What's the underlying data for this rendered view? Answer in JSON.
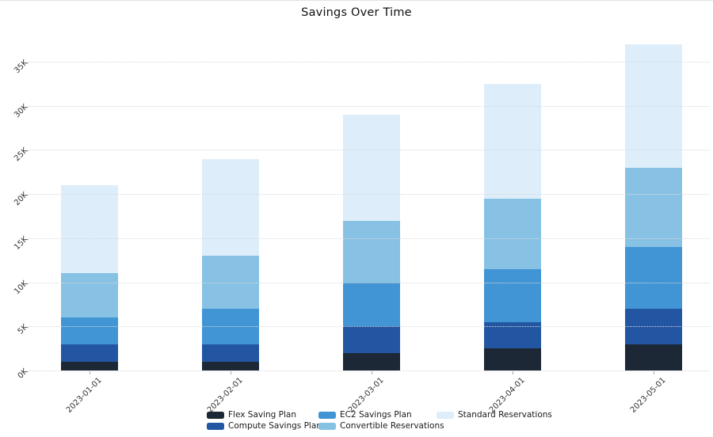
{
  "chart_data": {
    "type": "bar",
    "stacked": true,
    "title": "Savings Over Time",
    "categories": [
      "2023-01-01",
      "2023-02-01",
      "2023-03-01",
      "2023-04-01",
      "2023-05-01"
    ],
    "series": [
      {
        "name": "Flex Saving Plan",
        "color": "#1c2836",
        "values": [
          1000,
          1000,
          2000,
          2500,
          3000
        ]
      },
      {
        "name": "Compute Savings Plan",
        "color": "#2356a2",
        "values": [
          2000,
          2000,
          3000,
          3000,
          4000
        ]
      },
      {
        "name": "EC2 Savings Plan",
        "color": "#4195d5",
        "values": [
          3000,
          4000,
          5000,
          6000,
          7000
        ]
      },
      {
        "name": "Convertible Reservations",
        "color": "#87c2e4",
        "values": [
          5000,
          6000,
          7000,
          8000,
          9000
        ]
      },
      {
        "name": "Standard Reservations",
        "color": "#ddeefa",
        "values": [
          10000,
          11000,
          12000,
          13000,
          14000
        ]
      }
    ],
    "totals": [
      21000,
      24000,
      29000,
      32500,
      37000
    ],
    "xlabel": "",
    "ylabel": "",
    "y_ticks": [
      "0K",
      "5K",
      "10K",
      "15K",
      "20K",
      "25K",
      "30K",
      "35K"
    ],
    "y_tick_values": [
      0,
      5000,
      10000,
      15000,
      20000,
      25000,
      30000,
      35000
    ],
    "ylim": [
      0,
      35000
    ],
    "grid": "horizontal-dotted",
    "legend_position": "bottom-center",
    "legend_order_columns": [
      [
        "Flex Saving Plan",
        "Compute Savings Plan"
      ],
      [
        "EC2 Savings Plan",
        "Convertible Reservations"
      ],
      [
        "Standard Reservations"
      ]
    ]
  }
}
